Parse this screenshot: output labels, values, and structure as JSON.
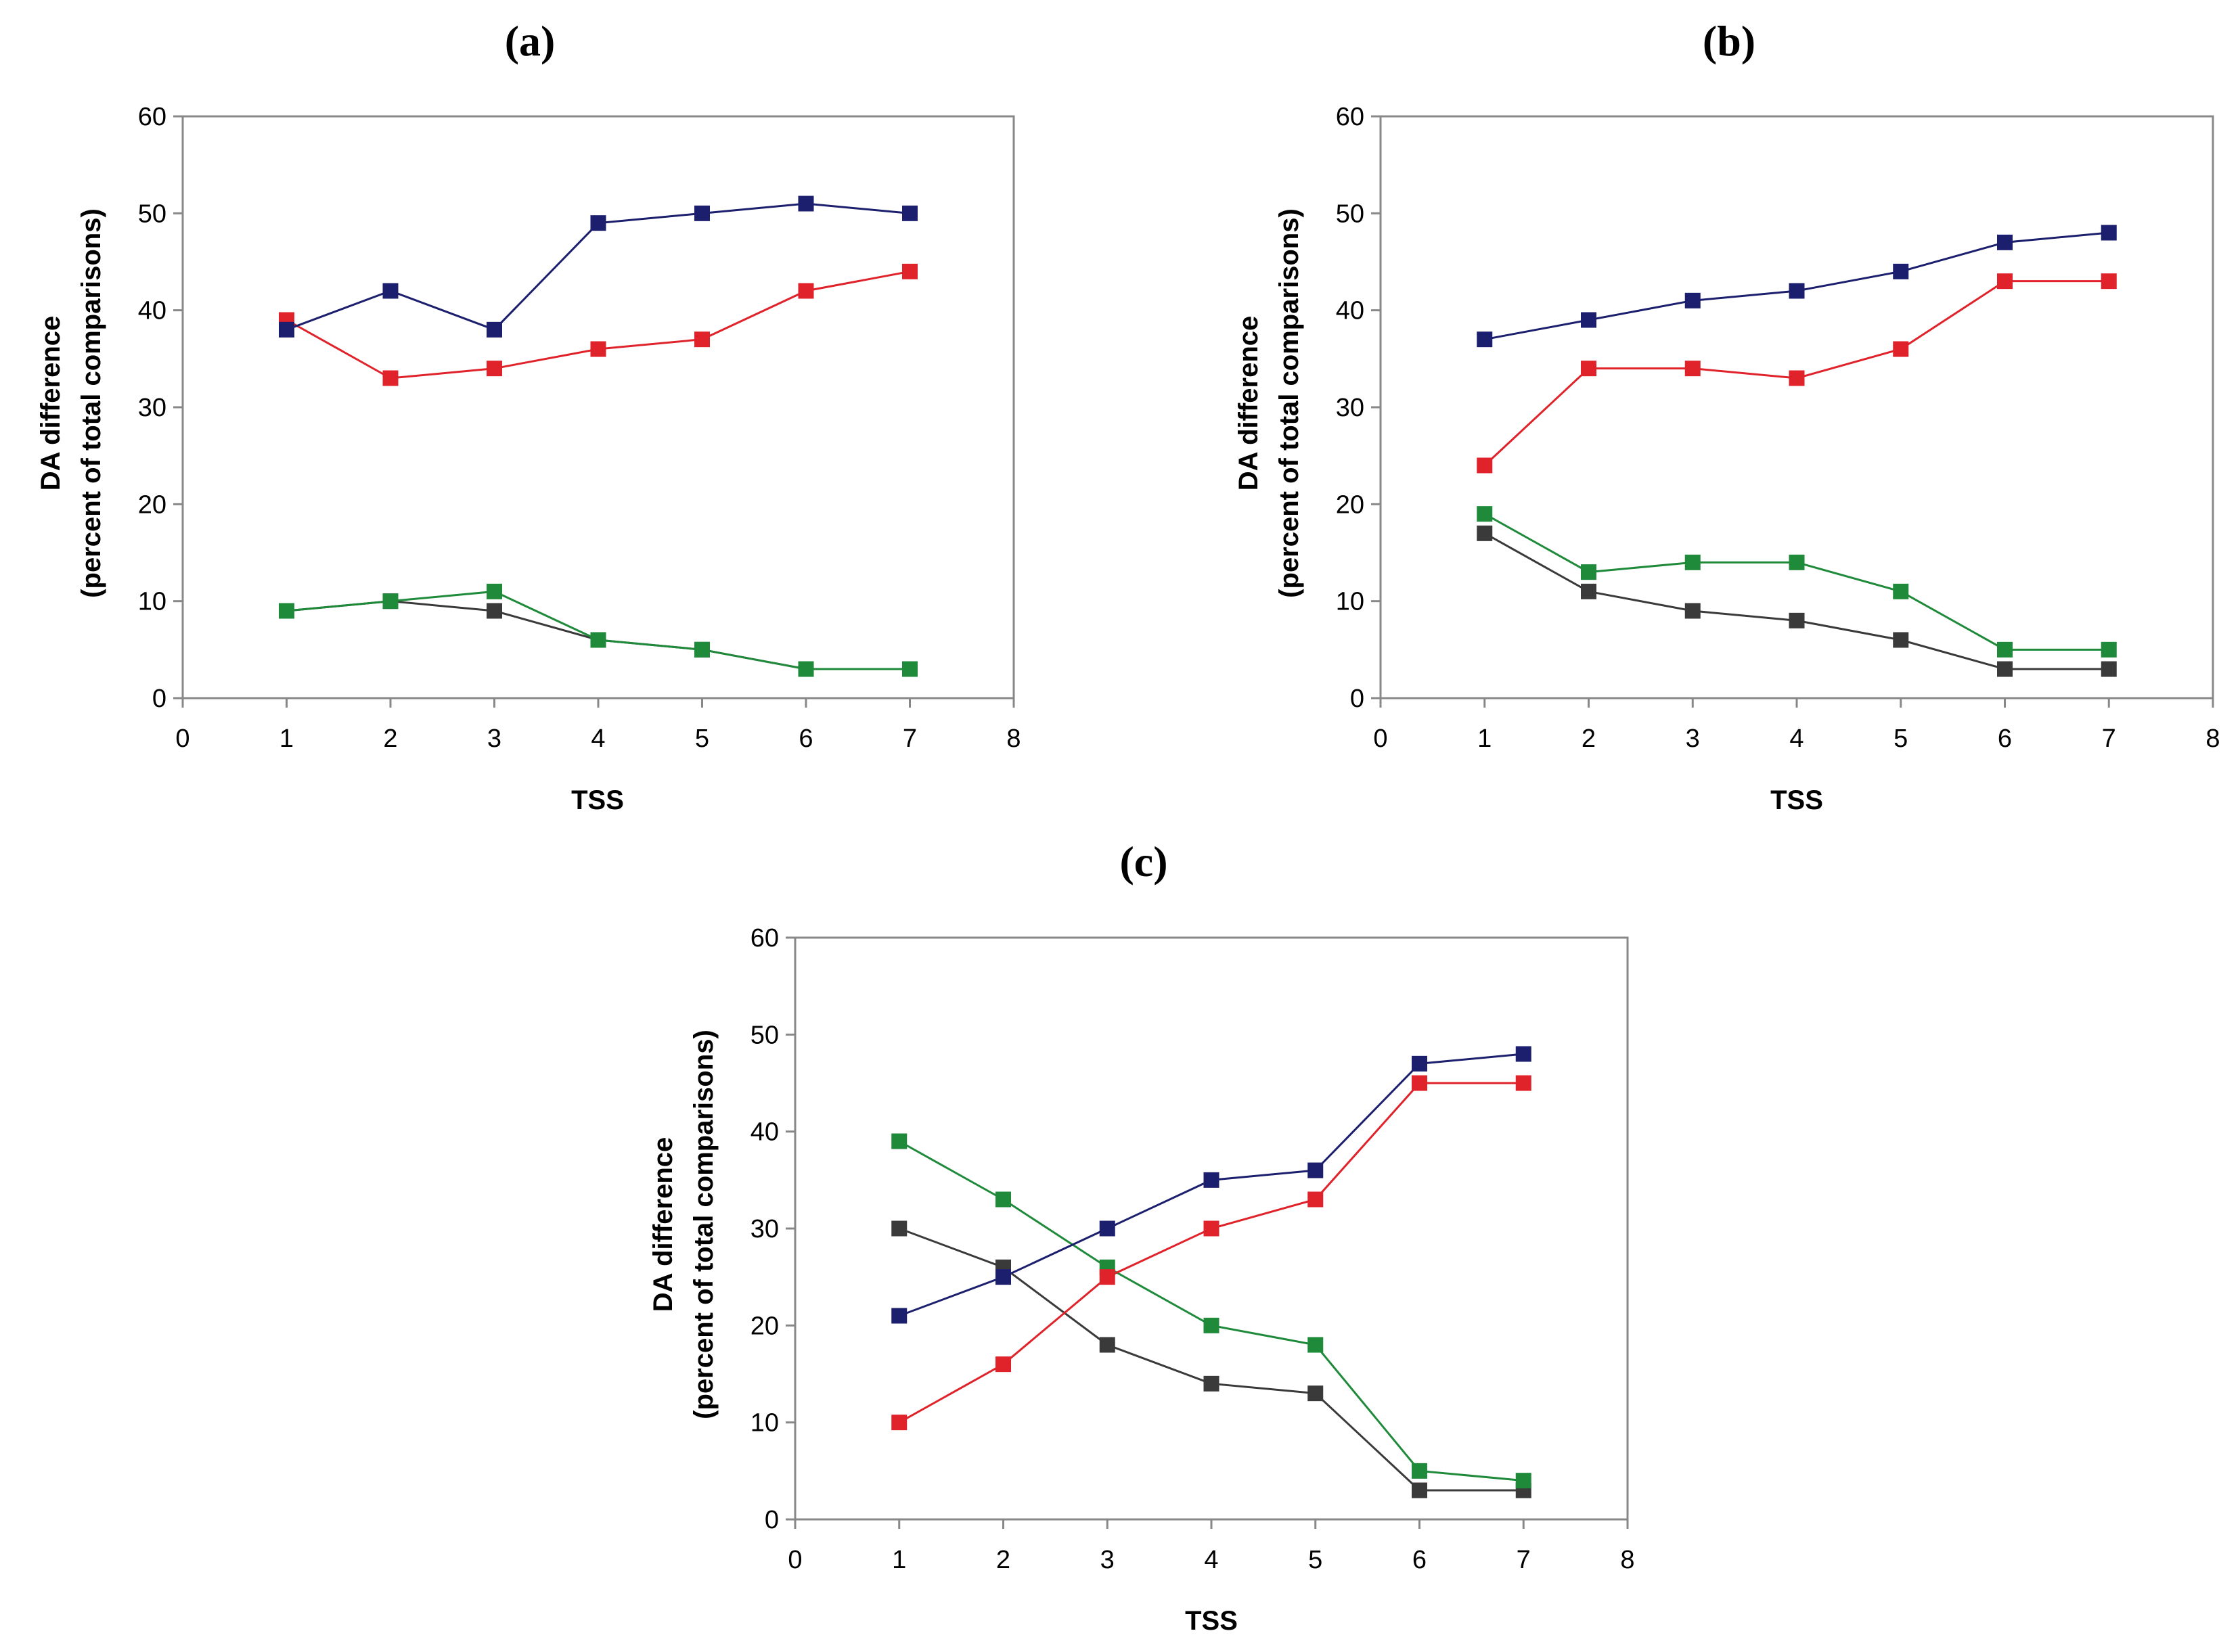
{
  "colors": {
    "blue": "#1b1f6e",
    "red": "#e0222a",
    "green": "#1e8a3a",
    "gray": "#3a3a3a",
    "axis": "#888888"
  },
  "chart_data": [
    {
      "type": "line",
      "panel_label": "(a)",
      "xlabel": "TSS",
      "ylabel": "DA difference",
      "ylabel2": "(percent of total comparisons)",
      "xlim": [
        0,
        8
      ],
      "ylim": [
        0,
        60
      ],
      "xticks": [
        "0",
        "1",
        "2",
        "3",
        "4",
        "5",
        "6",
        "7",
        "8"
      ],
      "yticks": [
        "0",
        "10",
        "20",
        "30",
        "40",
        "50",
        "60"
      ],
      "grid": false,
      "x": [
        1,
        2,
        3,
        4,
        5,
        6,
        7
      ],
      "series": [
        {
          "name": "blue",
          "color": "#1b1f6e",
          "values": [
            38,
            42,
            38,
            49,
            50,
            51,
            50
          ]
        },
        {
          "name": "red",
          "color": "#e0222a",
          "values": [
            39,
            33,
            34,
            36,
            37,
            42,
            44
          ]
        },
        {
          "name": "green",
          "color": "#1e8a3a",
          "values": [
            9,
            10,
            11,
            6,
            5,
            3,
            3
          ]
        },
        {
          "name": "gray",
          "color": "#3a3a3a",
          "values": [
            9,
            10,
            9,
            6,
            5,
            3,
            3
          ]
        }
      ]
    },
    {
      "type": "line",
      "panel_label": "(b)",
      "xlabel": "TSS",
      "ylabel": "DA difference",
      "ylabel2": "(percent of total comparisons)",
      "xlim": [
        0,
        8
      ],
      "ylim": [
        0,
        60
      ],
      "xticks": [
        "0",
        "1",
        "2",
        "3",
        "4",
        "5",
        "6",
        "7",
        "8"
      ],
      "yticks": [
        "0",
        "10",
        "20",
        "30",
        "40",
        "50",
        "60"
      ],
      "grid": false,
      "x": [
        1,
        2,
        3,
        4,
        5,
        6,
        7
      ],
      "series": [
        {
          "name": "blue",
          "color": "#1b1f6e",
          "values": [
            37,
            39,
            41,
            42,
            44,
            47,
            48
          ]
        },
        {
          "name": "red",
          "color": "#e0222a",
          "values": [
            24,
            34,
            34,
            33,
            36,
            43,
            43
          ]
        },
        {
          "name": "green",
          "color": "#1e8a3a",
          "values": [
            19,
            13,
            14,
            14,
            11,
            5,
            5
          ]
        },
        {
          "name": "gray",
          "color": "#3a3a3a",
          "values": [
            17,
            11,
            9,
            8,
            6,
            3,
            3
          ]
        }
      ]
    },
    {
      "type": "line",
      "panel_label": "(c)",
      "xlabel": "TSS",
      "ylabel": "DA difference",
      "ylabel2": "(percent of total comparisons)",
      "xlim": [
        0,
        8
      ],
      "ylim": [
        0,
        60
      ],
      "xticks": [
        "0",
        "1",
        "2",
        "3",
        "4",
        "5",
        "6",
        "7",
        "8"
      ],
      "yticks": [
        "0",
        "10",
        "20",
        "30",
        "40",
        "50",
        "60"
      ],
      "grid": false,
      "x": [
        1,
        2,
        3,
        4,
        5,
        6,
        7
      ],
      "series": [
        {
          "name": "blue",
          "color": "#1b1f6e",
          "values": [
            21,
            25,
            30,
            35,
            36,
            47,
            48
          ]
        },
        {
          "name": "red",
          "color": "#e0222a",
          "values": [
            10,
            16,
            25,
            30,
            33,
            45,
            45
          ]
        },
        {
          "name": "green",
          "color": "#1e8a3a",
          "values": [
            39,
            33,
            26,
            20,
            18,
            5,
            4
          ]
        },
        {
          "name": "gray",
          "color": "#3a3a3a",
          "values": [
            30,
            26,
            18,
            14,
            13,
            3,
            3
          ]
        }
      ]
    }
  ]
}
